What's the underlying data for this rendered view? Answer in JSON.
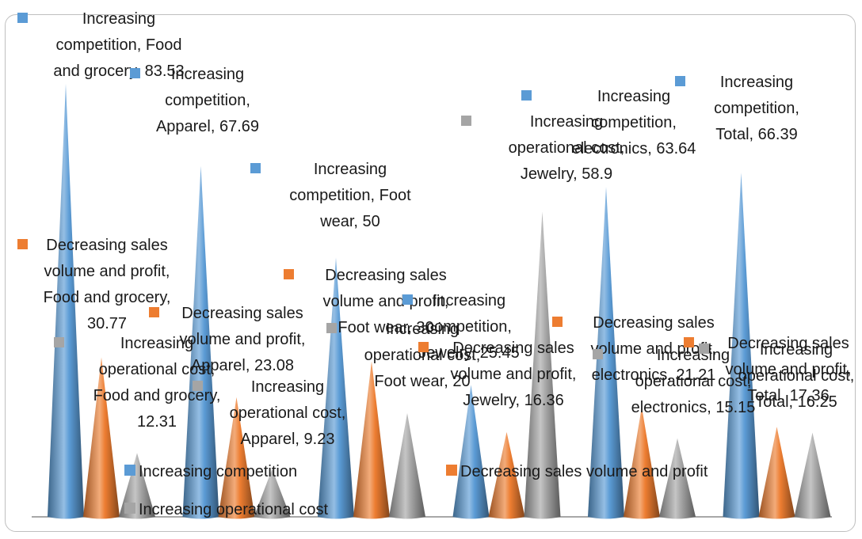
{
  "chart_data": {
    "type": "cone",
    "categories": [
      "Food and grocery",
      "Apparel",
      "Foot wear",
      "Jewelry",
      "electronics",
      "Total"
    ],
    "series": [
      {
        "name": "Increasing competition",
        "color": "#5b9bd5",
        "values": [
          83.53,
          67.69,
          50,
          25.45,
          63.64,
          66.39
        ]
      },
      {
        "name": "Decreasing sales volume and profit",
        "color": "#ed7d31",
        "values": [
          30.77,
          23.08,
          30,
          16.36,
          21.21,
          17.36
        ]
      },
      {
        "name": "Increasing operational cost",
        "color": "#a5a5a5",
        "values": [
          12.31,
          9.23,
          20,
          58.9,
          15.15,
          16.25
        ]
      }
    ],
    "labels": [
      [
        "Increasing|competition, Food|and grocery, 83.53",
        "Decreasing sales|volume and profit,|Food and grocery,|30.77",
        "Increasing|operational cost,|Food and grocery,|12.31"
      ],
      [
        "Increasing|competition,|Apparel, 67.69",
        "Decreasing sales|volume and profit,|Apparel, 23.08",
        "Increasing|operational cost,|Apparel, 9.23"
      ],
      [
        "Increasing|competition, Foot|wear, 50",
        "Decreasing sales|volume and profit,|Foot wear, 30",
        "Increasing|operational cost,|Foot wear, 20"
      ],
      [
        "Increasing|competition,|Jewelry, 25.45",
        "Decreasing sales|volume and profit,|Jewelry, 16.36",
        "Increasing|operational cost,|Jewelry, 58.9"
      ],
      [
        "Increasing|competition,|electronics, 63.64",
        "Decreasing sales|volume and profit,|electronics, 21.21",
        "Increasing|operational cost,|electronics, 15.15"
      ],
      [
        "Increasing|competition,|Total, 66.39",
        "Decreasing sales|volume and profit,|Total, 17.36",
        "Increasing|operational cost,|Total, 16.25"
      ]
    ],
    "legend": {
      "placement": "bottom",
      "entries": [
        "Increasing competition",
        "Decreasing sales volume and profit",
        "Increasing operational cost"
      ]
    },
    "ylim": [
      0,
      90
    ],
    "grid": false
  }
}
